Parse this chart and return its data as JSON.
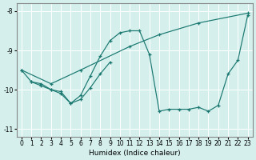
{
  "xlabel": "Humidex (Indice chaleur)",
  "xlim": [
    -0.5,
    23.5
  ],
  "ylim": [
    -11.2,
    -7.8
  ],
  "yticks": [
    -11,
    -10,
    -9,
    -8
  ],
  "xticks": [
    0,
    1,
    2,
    3,
    4,
    5,
    6,
    7,
    8,
    9,
    10,
    11,
    12,
    13,
    14,
    15,
    16,
    17,
    18,
    19,
    20,
    21,
    22,
    23
  ],
  "bg_color": "#d4efec",
  "line_color": "#1a7870",
  "grid_color": "#ffffff",
  "series": [
    {
      "x": [
        0,
        3,
        6,
        11,
        14,
        18,
        23
      ],
      "y": [
        -9.5,
        -9.85,
        -9.5,
        -8.9,
        -8.6,
        -8.3,
        -8.05
      ]
    },
    {
      "x": [
        1,
        2,
        3,
        4,
        5,
        6,
        7,
        8,
        9,
        10,
        11,
        12,
        13,
        14,
        15,
        16,
        17,
        18,
        19,
        20,
        21,
        22,
        23
      ],
      "y": [
        -9.8,
        -9.85,
        -10.0,
        -10.05,
        -10.35,
        -10.15,
        -9.65,
        -9.15,
        -8.75,
        -8.55,
        -8.5,
        -8.5,
        -9.1,
        -10.55,
        -10.5,
        -10.5,
        -10.5,
        -10.45,
        -10.55,
        -10.4,
        -9.6,
        -9.25,
        -8.1
      ]
    },
    {
      "x": [
        0,
        1,
        2,
        3,
        4,
        5,
        6,
        7,
        8,
        9
      ],
      "y": [
        -9.5,
        -9.8,
        -9.9,
        -10.0,
        -10.1,
        -10.35,
        -10.25,
        -9.95,
        -9.6,
        -9.3
      ]
    }
  ]
}
